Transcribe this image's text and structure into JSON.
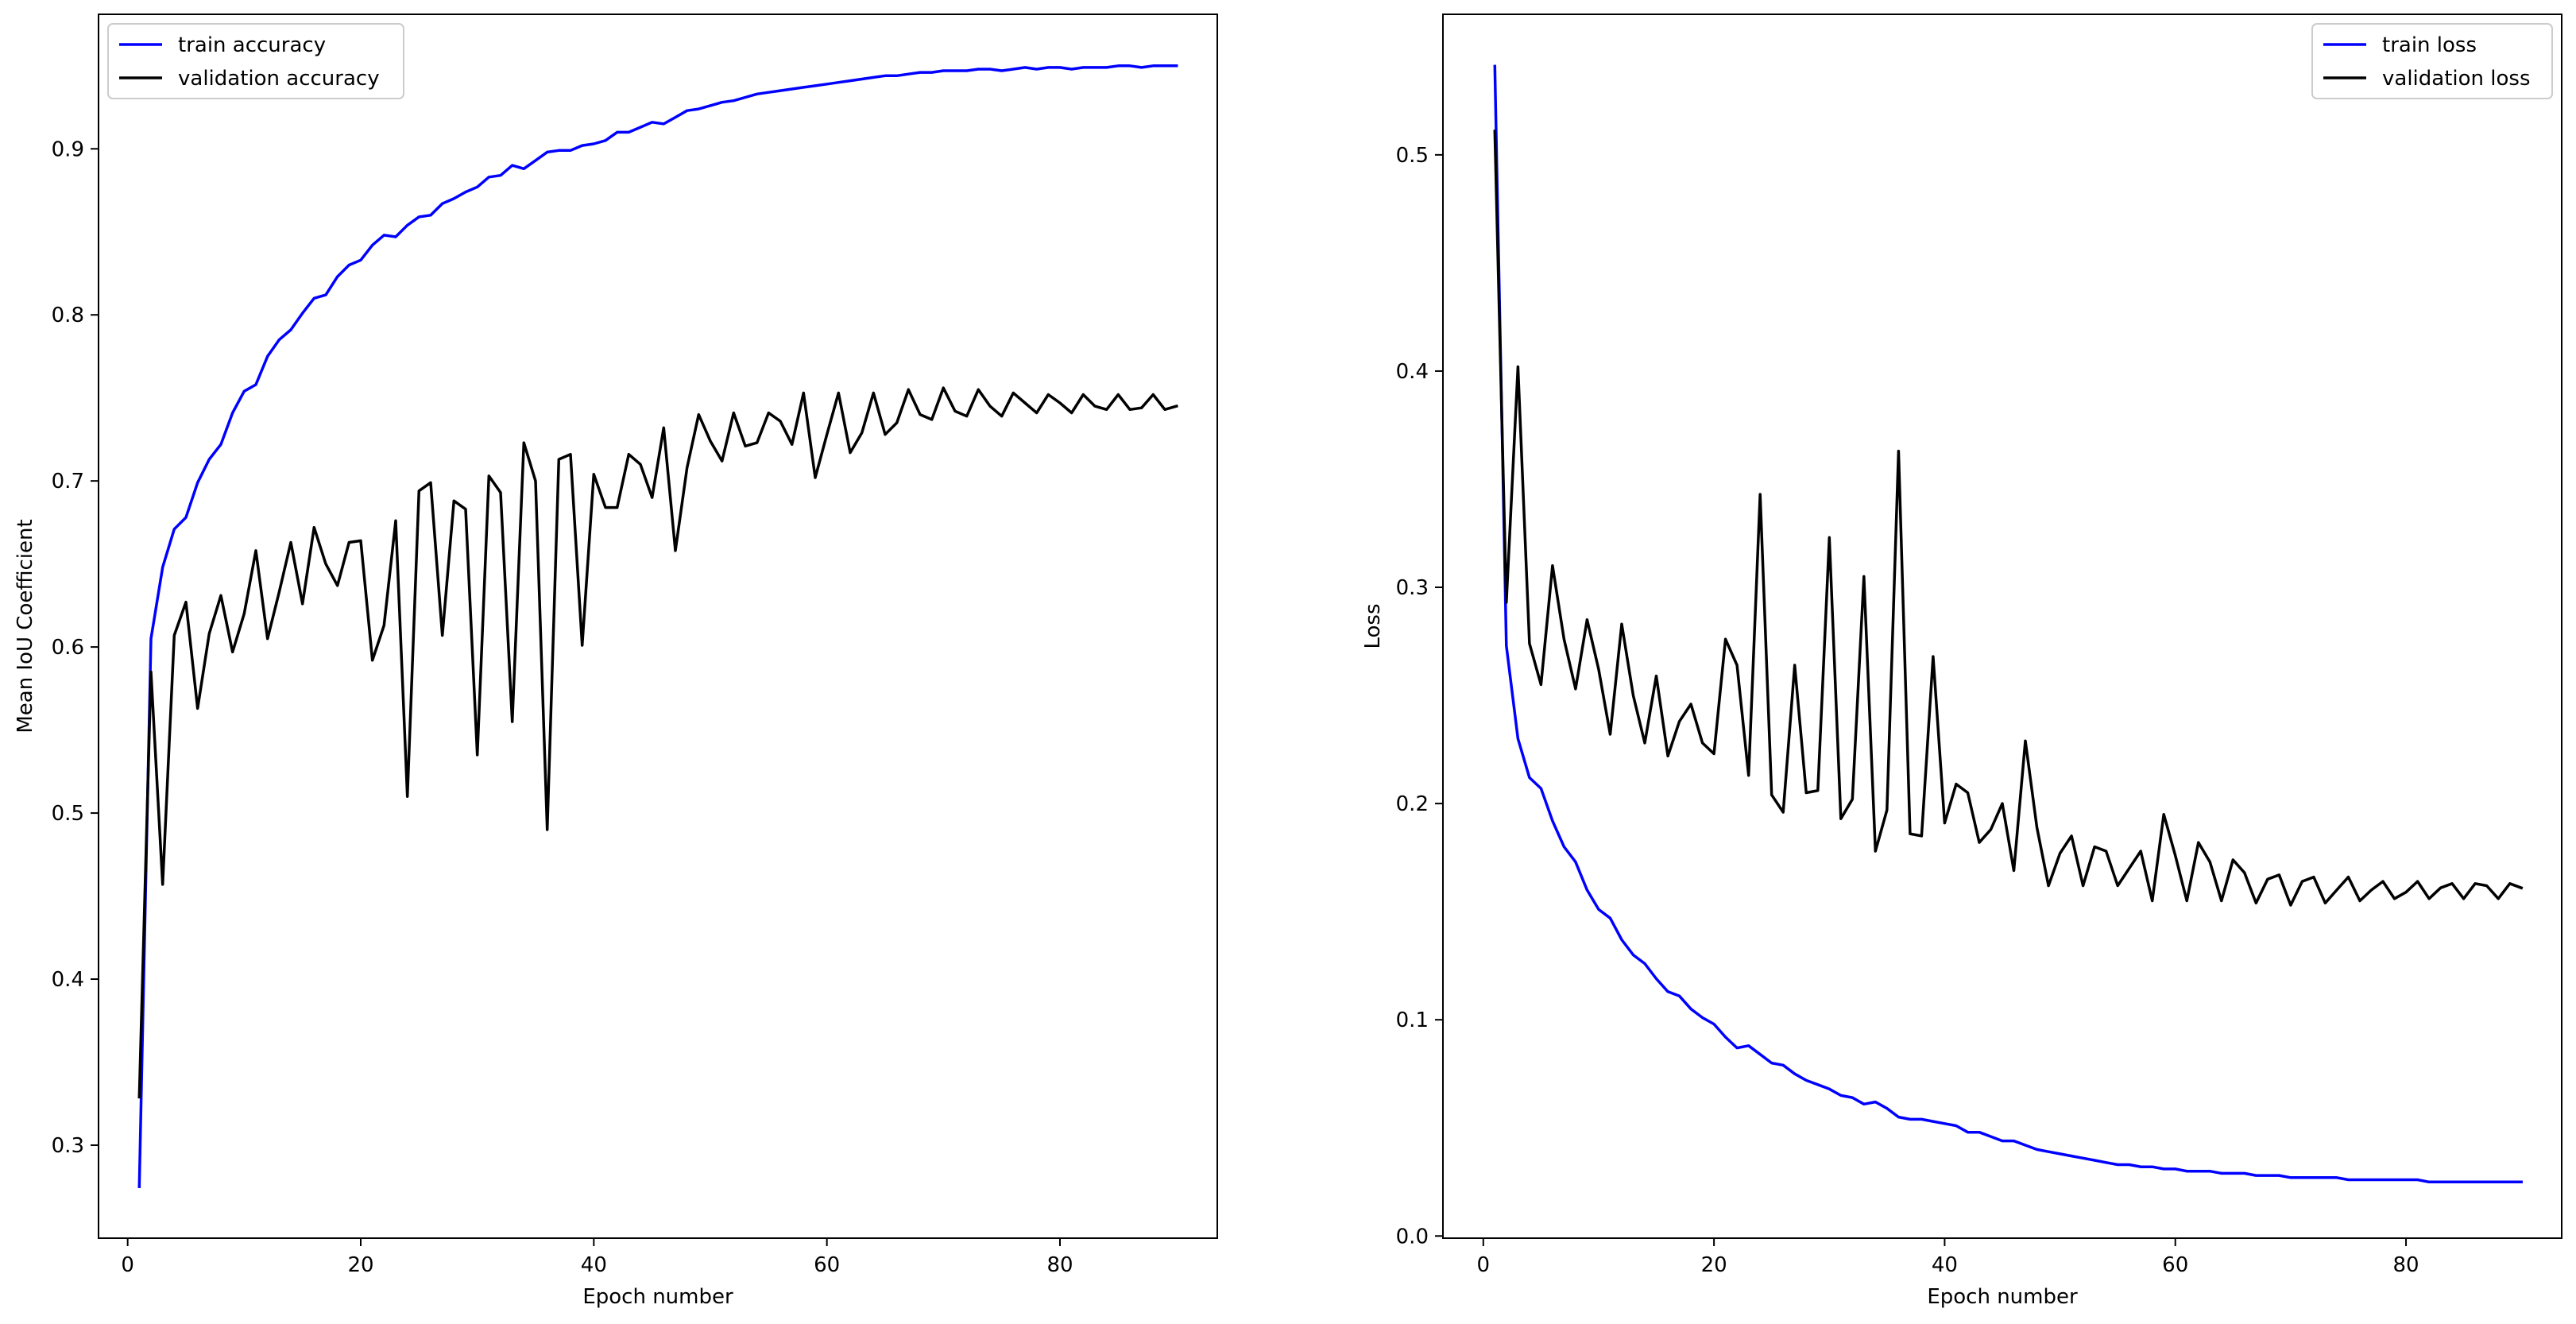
{
  "chart_data": [
    {
      "type": "line",
      "xlabel": "Epoch number",
      "ylabel": "Mean IoU Coefficient",
      "xlim": [
        -2.5,
        93.5
      ],
      "ylim": [
        0.244,
        0.981
      ],
      "xticks": [
        0,
        20,
        40,
        60,
        80
      ],
      "yticks": [
        0.3,
        0.4,
        0.5,
        0.6,
        0.7,
        0.8,
        0.9
      ],
      "legend": "top-left",
      "series": [
        {
          "name": "train accuracy",
          "color": "#0000ff",
          "x": [
            1,
            2,
            3,
            4,
            5,
            6,
            7,
            8,
            9,
            10,
            11,
            12,
            13,
            14,
            15,
            16,
            17,
            18,
            19,
            20,
            21,
            22,
            23,
            24,
            25,
            26,
            27,
            28,
            29,
            30,
            31,
            32,
            33,
            34,
            35,
            36,
            37,
            38,
            39,
            40,
            41,
            42,
            43,
            44,
            45,
            46,
            47,
            48,
            49,
            50,
            51,
            52,
            53,
            54,
            55,
            56,
            57,
            58,
            59,
            60,
            61,
            62,
            63,
            64,
            65,
            66,
            67,
            68,
            69,
            70,
            71,
            72,
            73,
            74,
            75,
            76,
            77,
            78,
            79,
            80,
            81,
            82,
            83,
            84,
            85,
            86,
            87,
            88,
            89,
            90
          ],
          "y": [
            0.275,
            0.605,
            0.648,
            0.671,
            0.678,
            0.699,
            0.713,
            0.722,
            0.741,
            0.754,
            0.758,
            0.775,
            0.785,
            0.791,
            0.801,
            0.81,
            0.812,
            0.823,
            0.83,
            0.833,
            0.842,
            0.848,
            0.847,
            0.854,
            0.859,
            0.86,
            0.867,
            0.87,
            0.874,
            0.877,
            0.883,
            0.884,
            0.89,
            0.888,
            0.893,
            0.898,
            0.899,
            0.899,
            0.902,
            0.903,
            0.905,
            0.91,
            0.91,
            0.913,
            0.916,
            0.915,
            0.919,
            0.923,
            0.924,
            0.926,
            0.928,
            0.929,
            0.931,
            0.933,
            0.934,
            0.935,
            0.936,
            0.937,
            0.938,
            0.939,
            0.94,
            0.941,
            0.942,
            0.943,
            0.944,
            0.944,
            0.945,
            0.946,
            0.946,
            0.947,
            0.947,
            0.947,
            0.948,
            0.948,
            0.947,
            0.948,
            0.949,
            0.948,
            0.949,
            0.949,
            0.948,
            0.949,
            0.949,
            0.949,
            0.95,
            0.95,
            0.949,
            0.95,
            0.95,
            0.95
          ]
        },
        {
          "name": "validation accuracy",
          "color": "#000000",
          "x": [
            1,
            2,
            3,
            4,
            5,
            6,
            7,
            8,
            9,
            10,
            11,
            12,
            13,
            14,
            15,
            16,
            17,
            18,
            19,
            20,
            21,
            22,
            23,
            24,
            25,
            26,
            27,
            28,
            29,
            30,
            31,
            32,
            33,
            34,
            35,
            36,
            37,
            38,
            39,
            40,
            41,
            42,
            43,
            44,
            45,
            46,
            47,
            48,
            49,
            50,
            51,
            52,
            53,
            54,
            55,
            56,
            57,
            58,
            59,
            60,
            61,
            62,
            63,
            64,
            65,
            66,
            67,
            68,
            69,
            70,
            71,
            72,
            73,
            74,
            75,
            76,
            77,
            78,
            79,
            80,
            81,
            82,
            83,
            84,
            85,
            86,
            87,
            88,
            89,
            90
          ],
          "y": [
            0.329,
            0.585,
            0.457,
            0.607,
            0.627,
            0.563,
            0.608,
            0.631,
            0.597,
            0.62,
            0.658,
            0.605,
            0.633,
            0.663,
            0.626,
            0.672,
            0.65,
            0.637,
            0.663,
            0.664,
            0.592,
            0.613,
            0.676,
            0.51,
            0.694,
            0.699,
            0.607,
            0.688,
            0.683,
            0.535,
            0.703,
            0.693,
            0.555,
            0.723,
            0.7,
            0.49,
            0.713,
            0.716,
            0.601,
            0.704,
            0.684,
            0.684,
            0.716,
            0.71,
            0.69,
            0.732,
            0.658,
            0.708,
            0.74,
            0.724,
            0.712,
            0.741,
            0.721,
            0.723,
            0.741,
            0.736,
            0.722,
            0.753,
            0.702,
            0.728,
            0.753,
            0.717,
            0.729,
            0.753,
            0.728,
            0.735,
            0.755,
            0.74,
            0.737,
            0.756,
            0.742,
            0.739,
            0.755,
            0.745,
            0.739,
            0.753,
            0.747,
            0.741,
            0.752,
            0.747,
            0.741,
            0.752,
            0.745,
            0.743,
            0.752,
            0.743,
            0.744,
            0.752,
            0.743,
            0.745
          ]
        }
      ]
    },
    {
      "type": "line",
      "xlabel": "Epoch number",
      "ylabel": "Loss",
      "xlim": [
        -3.5,
        93.5
      ],
      "ylim": [
        -0.001,
        0.565
      ],
      "xticks": [
        0,
        20,
        40,
        60,
        80
      ],
      "yticks": [
        0.0,
        0.1,
        0.2,
        0.3,
        0.4,
        0.5
      ],
      "legend": "top-right",
      "series": [
        {
          "name": "train loss",
          "color": "#0000ff",
          "x": [
            1,
            2,
            3,
            4,
            5,
            6,
            7,
            8,
            9,
            10,
            11,
            12,
            13,
            14,
            15,
            16,
            17,
            18,
            19,
            20,
            21,
            22,
            23,
            24,
            25,
            26,
            27,
            28,
            29,
            30,
            31,
            32,
            33,
            34,
            35,
            36,
            37,
            38,
            39,
            40,
            41,
            42,
            43,
            44,
            45,
            46,
            47,
            48,
            49,
            50,
            51,
            52,
            53,
            54,
            55,
            56,
            57,
            58,
            59,
            60,
            61,
            62,
            63,
            64,
            65,
            66,
            67,
            68,
            69,
            70,
            71,
            72,
            73,
            74,
            75,
            76,
            77,
            78,
            79,
            80,
            81,
            82,
            83,
            84,
            85,
            86,
            87,
            88,
            89,
            90
          ],
          "y": [
            0.541,
            0.273,
            0.23,
            0.212,
            0.207,
            0.192,
            0.18,
            0.173,
            0.16,
            0.151,
            0.147,
            0.137,
            0.13,
            0.126,
            0.119,
            0.113,
            0.111,
            0.105,
            0.101,
            0.098,
            0.092,
            0.087,
            0.088,
            0.084,
            0.08,
            0.079,
            0.075,
            0.072,
            0.07,
            0.068,
            0.065,
            0.064,
            0.061,
            0.062,
            0.059,
            0.055,
            0.054,
            0.054,
            0.053,
            0.052,
            0.051,
            0.048,
            0.048,
            0.046,
            0.044,
            0.044,
            0.042,
            0.04,
            0.039,
            0.038,
            0.037,
            0.036,
            0.035,
            0.034,
            0.033,
            0.033,
            0.032,
            0.032,
            0.031,
            0.031,
            0.03,
            0.03,
            0.03,
            0.029,
            0.029,
            0.029,
            0.028,
            0.028,
            0.028,
            0.027,
            0.027,
            0.027,
            0.027,
            0.027,
            0.026,
            0.026,
            0.026,
            0.026,
            0.026,
            0.026,
            0.026,
            0.025,
            0.025,
            0.025,
            0.025,
            0.025,
            0.025,
            0.025,
            0.025,
            0.025
          ]
        },
        {
          "name": "validation loss",
          "color": "#000000",
          "x": [
            1,
            2,
            3,
            4,
            5,
            6,
            7,
            8,
            9,
            10,
            11,
            12,
            13,
            14,
            15,
            16,
            17,
            18,
            19,
            20,
            21,
            22,
            23,
            24,
            25,
            26,
            27,
            28,
            29,
            30,
            31,
            32,
            33,
            34,
            35,
            36,
            37,
            38,
            39,
            40,
            41,
            42,
            43,
            44,
            45,
            46,
            47,
            48,
            49,
            50,
            51,
            52,
            53,
            54,
            55,
            56,
            57,
            58,
            59,
            60,
            61,
            62,
            63,
            64,
            65,
            66,
            67,
            68,
            69,
            70,
            71,
            72,
            73,
            74,
            75,
            76,
            77,
            78,
            79,
            80,
            81,
            82,
            83,
            84,
            85,
            86,
            87,
            88,
            89,
            90
          ],
          "y": [
            0.511,
            0.293,
            0.402,
            0.274,
            0.255,
            0.31,
            0.276,
            0.253,
            0.285,
            0.262,
            0.232,
            0.283,
            0.25,
            0.228,
            0.259,
            0.222,
            0.238,
            0.246,
            0.228,
            0.223,
            0.276,
            0.264,
            0.213,
            0.343,
            0.204,
            0.196,
            0.264,
            0.205,
            0.206,
            0.323,
            0.193,
            0.202,
            0.305,
            0.178,
            0.197,
            0.363,
            0.186,
            0.185,
            0.268,
            0.191,
            0.209,
            0.205,
            0.182,
            0.188,
            0.2,
            0.169,
            0.229,
            0.189,
            0.162,
            0.177,
            0.185,
            0.162,
            0.18,
            0.178,
            0.162,
            0.17,
            0.178,
            0.155,
            0.195,
            0.176,
            0.155,
            0.182,
            0.173,
            0.155,
            0.174,
            0.168,
            0.154,
            0.165,
            0.167,
            0.153,
            0.164,
            0.166,
            0.154,
            0.16,
            0.166,
            0.155,
            0.16,
            0.164,
            0.156,
            0.159,
            0.164,
            0.156,
            0.161,
            0.163,
            0.156,
            0.163,
            0.162,
            0.156,
            0.163,
            0.161
          ]
        }
      ]
    }
  ]
}
